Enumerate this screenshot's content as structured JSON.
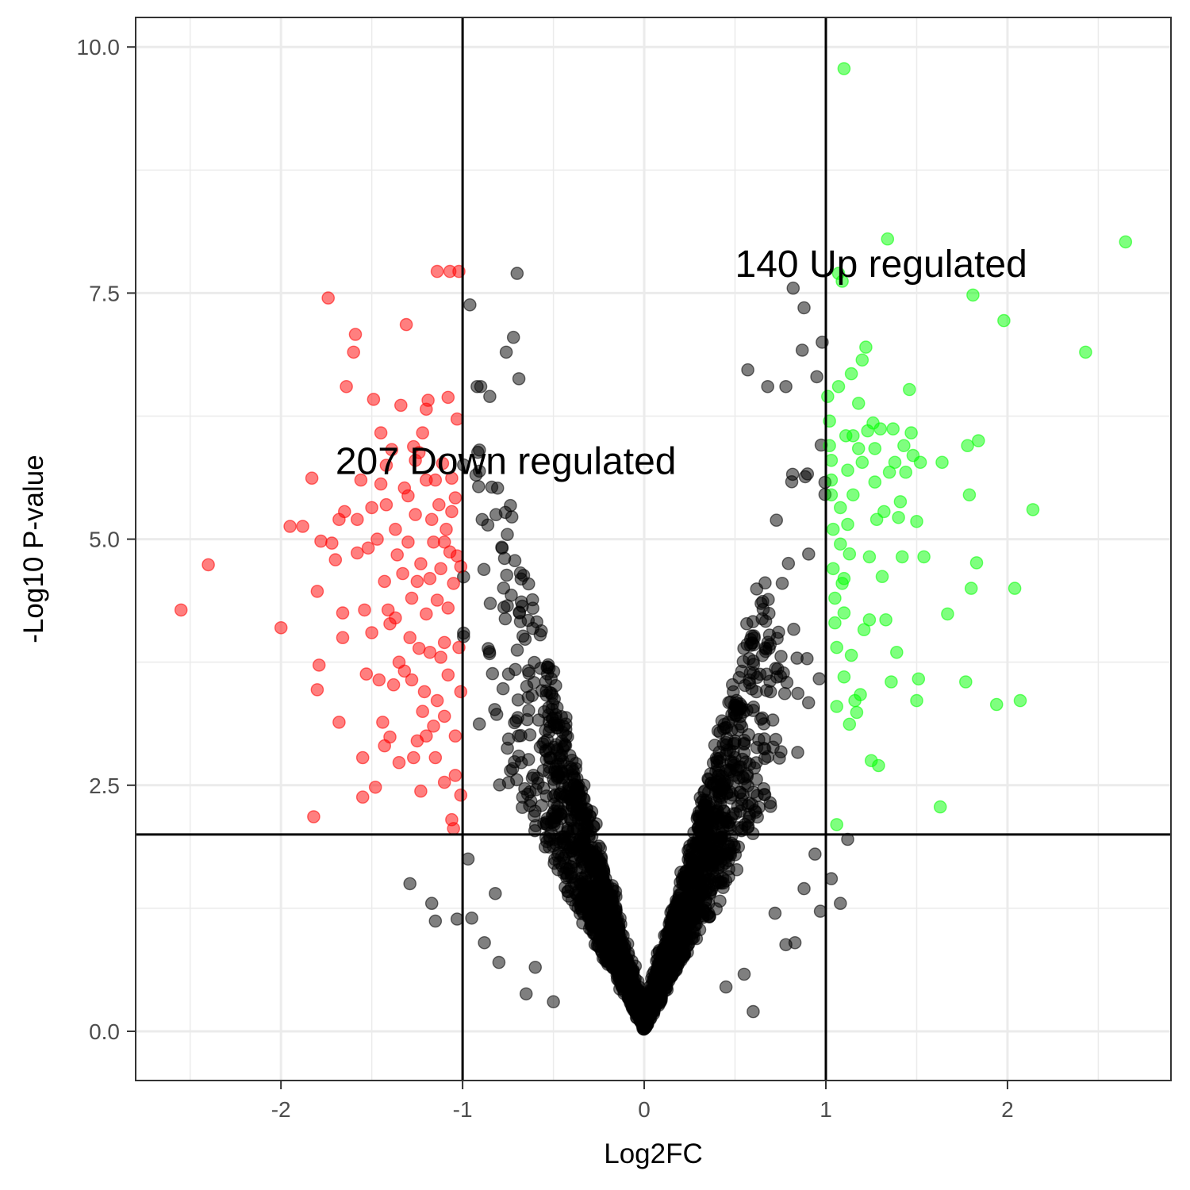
{
  "chart_data": {
    "type": "scatter",
    "title": "",
    "xlabel": "Log2FC",
    "ylabel": "-Log10 P-value",
    "xlim": [
      -2.8,
      2.9
    ],
    "ylim": [
      -0.5,
      10.3
    ],
    "x_ticks": [
      -2,
      -1,
      0,
      1,
      2
    ],
    "x_tick_labels": [
      "-2",
      "-1",
      "0",
      "1",
      "2"
    ],
    "y_ticks": [
      0.0,
      2.5,
      5.0,
      7.5,
      10.0
    ],
    "y_tick_labels": [
      "0.0",
      "2.5",
      "5.0",
      "7.5",
      "10.0"
    ],
    "grid": true,
    "legend": "none",
    "thresholds": {
      "log2fc": [
        -1,
        1
      ],
      "neg_log10_p": 2.0
    },
    "colors": {
      "down": "#ff0000",
      "up": "#00ff00",
      "not_significant": "#000000"
    },
    "annotations": [
      {
        "text": "207 Down regulated",
        "x": -1.7,
        "y": 5.8
      },
      {
        "text": "140 Up regulated",
        "x": 0.5,
        "y": 7.8
      }
    ],
    "series": [
      {
        "group": "down",
        "points": [
          [
            -2.55,
            4.28
          ],
          [
            -2.4,
            4.74
          ],
          [
            -2.0,
            4.1
          ],
          [
            -1.95,
            5.13
          ],
          [
            -1.88,
            5.13
          ],
          [
            -1.82,
            2.18
          ],
          [
            -1.8,
            3.47
          ],
          [
            -1.79,
            3.72
          ],
          [
            -1.8,
            4.47
          ],
          [
            -1.78,
            4.98
          ],
          [
            -1.83,
            5.62
          ],
          [
            -1.74,
            7.45
          ],
          [
            -1.72,
            4.96
          ],
          [
            -1.7,
            4.79
          ],
          [
            -1.68,
            5.2
          ],
          [
            -1.68,
            3.14
          ],
          [
            -1.66,
            4.25
          ],
          [
            -1.66,
            4.0
          ],
          [
            -1.65,
            5.28
          ],
          [
            -1.64,
            6.55
          ],
          [
            -1.6,
            6.9
          ],
          [
            -1.59,
            7.08
          ],
          [
            -1.58,
            5.2
          ],
          [
            -1.58,
            4.86
          ],
          [
            -1.56,
            5.6
          ],
          [
            -1.55,
            2.78
          ],
          [
            -1.55,
            2.38
          ],
          [
            -1.54,
            4.28
          ],
          [
            -1.53,
            3.63
          ],
          [
            -1.52,
            4.91
          ],
          [
            -1.5,
            5.32
          ],
          [
            -1.49,
            6.42
          ],
          [
            -1.48,
            2.48
          ],
          [
            -1.47,
            5.0
          ],
          [
            -1.46,
            3.57
          ],
          [
            -1.45,
            5.56
          ],
          [
            -1.45,
            6.08
          ],
          [
            -1.44,
            3.14
          ],
          [
            -1.43,
            4.57
          ],
          [
            -1.42,
            5.35
          ],
          [
            -1.42,
            5.75
          ],
          [
            -1.41,
            4.28
          ],
          [
            -1.4,
            2.99
          ],
          [
            -1.4,
            4.14
          ],
          [
            -1.39,
            5.91
          ],
          [
            -1.38,
            3.52
          ],
          [
            -1.37,
            5.1
          ],
          [
            -1.36,
            4.84
          ],
          [
            -1.35,
            2.73
          ],
          [
            -1.35,
            3.75
          ],
          [
            -1.34,
            6.36
          ],
          [
            -1.33,
            4.65
          ],
          [
            -1.32,
            3.66
          ],
          [
            -1.31,
            7.18
          ],
          [
            -1.3,
            5.44
          ],
          [
            -1.3,
            4.97
          ],
          [
            -1.29,
            4.0
          ],
          [
            -1.28,
            3.57
          ],
          [
            -1.28,
            4.4
          ],
          [
            -1.27,
            2.78
          ],
          [
            -1.27,
            5.94
          ],
          [
            -1.26,
            5.25
          ],
          [
            -1.25,
            4.57
          ],
          [
            -1.25,
            2.95
          ],
          [
            -1.24,
            3.89
          ],
          [
            -1.24,
            5.88
          ],
          [
            -1.23,
            4.75
          ],
          [
            -1.23,
            2.44
          ],
          [
            -1.22,
            6.08
          ],
          [
            -1.22,
            3.25
          ],
          [
            -1.21,
            3.45
          ],
          [
            -1.2,
            4.24
          ],
          [
            -1.2,
            5.6
          ],
          [
            -1.2,
            3.0
          ],
          [
            -1.19,
            6.41
          ],
          [
            -1.18,
            4.6
          ],
          [
            -1.18,
            3.85
          ],
          [
            -1.17,
            5.2
          ],
          [
            -1.16,
            4.97
          ],
          [
            -1.16,
            3.1
          ],
          [
            -1.15,
            5.6
          ],
          [
            -1.15,
            2.78
          ],
          [
            -1.14,
            4.38
          ],
          [
            -1.14,
            3.36
          ],
          [
            -1.13,
            5.35
          ],
          [
            -1.12,
            4.7
          ],
          [
            -1.12,
            3.8
          ],
          [
            -1.11,
            5.77
          ],
          [
            -1.1,
            4.97
          ],
          [
            -1.1,
            3.2
          ],
          [
            -1.1,
            2.53
          ],
          [
            -1.09,
            5.1
          ],
          [
            -1.08,
            4.3
          ],
          [
            -1.08,
            6.44
          ],
          [
            -1.08,
            3.62
          ],
          [
            -1.07,
            7.72
          ],
          [
            -1.07,
            4.87
          ],
          [
            -1.06,
            2.15
          ],
          [
            -1.06,
            5.28
          ],
          [
            -1.05,
            2.06
          ],
          [
            -1.05,
            4.55
          ],
          [
            -1.04,
            3.0
          ],
          [
            -1.04,
            5.42
          ],
          [
            -1.04,
            2.6
          ],
          [
            -1.03,
            6.22
          ],
          [
            -1.03,
            4.83
          ],
          [
            -1.02,
            3.9
          ],
          [
            -1.02,
            7.72
          ],
          [
            -1.01,
            3.45
          ],
          [
            -1.01,
            2.4
          ],
          [
            -1.01,
            4.72
          ],
          [
            -1.14,
            7.72
          ],
          [
            -1.2,
            6.32
          ],
          [
            -1.26,
            5.8
          ],
          [
            -1.32,
            5.52
          ],
          [
            -1.37,
            4.2
          ],
          [
            -1.43,
            2.9
          ],
          [
            -1.5,
            4.05
          ],
          [
            -1.1,
            3.95
          ],
          [
            -1.06,
            5.62
          ]
        ]
      },
      {
        "group": "up",
        "points": [
          [
            1.1,
            9.78
          ],
          [
            1.01,
            6.45
          ],
          [
            1.02,
            6.2
          ],
          [
            1.02,
            5.95
          ],
          [
            1.03,
            5.8
          ],
          [
            1.03,
            5.45
          ],
          [
            1.04,
            5.1
          ],
          [
            1.04,
            4.7
          ],
          [
            1.05,
            4.4
          ],
          [
            1.05,
            4.15
          ],
          [
            1.06,
            3.9
          ],
          [
            1.06,
            2.1
          ],
          [
            1.07,
            6.55
          ],
          [
            1.08,
            5.32
          ],
          [
            1.08,
            4.95
          ],
          [
            1.09,
            4.55
          ],
          [
            1.1,
            4.25
          ],
          [
            1.1,
            3.6
          ],
          [
            1.11,
            6.05
          ],
          [
            1.12,
            5.7
          ],
          [
            1.12,
            5.15
          ],
          [
            1.13,
            4.85
          ],
          [
            1.14,
            6.68
          ],
          [
            1.14,
            3.82
          ],
          [
            1.15,
            6.05
          ],
          [
            1.15,
            5.45
          ],
          [
            1.16,
            3.36
          ],
          [
            1.17,
            3.24
          ],
          [
            1.18,
            6.38
          ],
          [
            1.18,
            5.92
          ],
          [
            1.19,
            3.42
          ],
          [
            1.2,
            6.82
          ],
          [
            1.2,
            5.78
          ],
          [
            1.22,
            6.95
          ],
          [
            1.23,
            6.1
          ],
          [
            1.24,
            4.82
          ],
          [
            1.24,
            4.18
          ],
          [
            1.25,
            2.75
          ],
          [
            1.26,
            6.18
          ],
          [
            1.27,
            5.58
          ],
          [
            1.28,
            5.2
          ],
          [
            1.29,
            2.7
          ],
          [
            1.3,
            6.12
          ],
          [
            1.31,
            4.62
          ],
          [
            1.32,
            5.28
          ],
          [
            1.33,
            4.18
          ],
          [
            1.34,
            8.05
          ],
          [
            1.35,
            5.68
          ],
          [
            1.36,
            3.55
          ],
          [
            1.37,
            6.12
          ],
          [
            1.38,
            5.78
          ],
          [
            1.4,
            5.22
          ],
          [
            1.41,
            5.38
          ],
          [
            1.42,
            4.82
          ],
          [
            1.43,
            5.95
          ],
          [
            1.44,
            5.68
          ],
          [
            1.46,
            6.52
          ],
          [
            1.47,
            6.08
          ],
          [
            1.48,
            5.85
          ],
          [
            1.5,
            5.18
          ],
          [
            1.5,
            3.36
          ],
          [
            1.51,
            3.58
          ],
          [
            1.52,
            5.78
          ],
          [
            1.54,
            4.82
          ],
          [
            1.63,
            2.28
          ],
          [
            1.64,
            5.78
          ],
          [
            1.67,
            4.24
          ],
          [
            1.77,
            3.55
          ],
          [
            1.78,
            5.95
          ],
          [
            1.79,
            5.45
          ],
          [
            1.8,
            4.5
          ],
          [
            1.81,
            7.48
          ],
          [
            1.83,
            4.76
          ],
          [
            1.84,
            6.0
          ],
          [
            1.94,
            3.32
          ],
          [
            1.98,
            7.22
          ],
          [
            2.04,
            4.5
          ],
          [
            2.07,
            3.36
          ],
          [
            2.14,
            5.3
          ],
          [
            2.43,
            6.9
          ],
          [
            2.65,
            8.02
          ],
          [
            1.09,
            7.62
          ],
          [
            1.07,
            7.7
          ],
          [
            1.21,
            4.08
          ],
          [
            1.06,
            3.3
          ],
          [
            1.13,
            3.12
          ],
          [
            1.03,
            5.6
          ],
          [
            1.27,
            5.92
          ],
          [
            1.1,
            4.6
          ],
          [
            1.39,
            3.85
          ]
        ]
      },
      {
        "group": "not_significant",
        "generated": true
      }
    ]
  }
}
